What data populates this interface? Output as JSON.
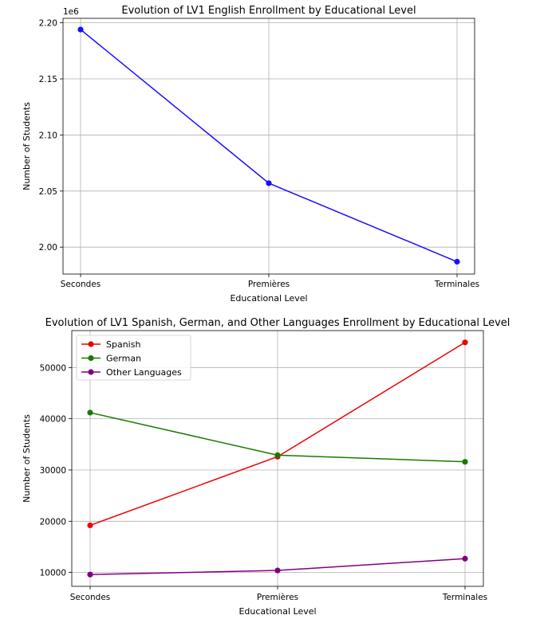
{
  "chart_data": [
    {
      "type": "line",
      "title": "Evolution of LV1 English Enrollment by Educational Level",
      "xlabel": "Educational Level",
      "ylabel": "Number of Students",
      "offset_label": "1e6",
      "categories": [
        "Secondes",
        "Premières",
        "Terminales"
      ],
      "series": [
        {
          "values": [
            2194000,
            2057000,
            1987000
          ],
          "color": "#1a0dff"
        }
      ],
      "yticks": [
        2000000,
        2050000,
        2100000,
        2150000,
        2200000
      ],
      "ytick_labels": [
        "2.00",
        "2.05",
        "2.10",
        "2.15",
        "2.20"
      ],
      "ylim": [
        1976000,
        2204000
      ],
      "grid": true,
      "legend": false
    },
    {
      "type": "line",
      "title": "Evolution of LV1 Spanish, German, and Other Languages Enrollment by Educational Level",
      "xlabel": "Educational Level",
      "ylabel": "Number of Students",
      "categories": [
        "Secondes",
        "Premières",
        "Terminales"
      ],
      "series": [
        {
          "name": "Spanish",
          "values": [
            19200,
            32600,
            54900
          ],
          "color": "#ee0000"
        },
        {
          "name": "German",
          "values": [
            41200,
            32900,
            31600
          ],
          "color": "#1a7a00"
        },
        {
          "name": "Other Languages",
          "values": [
            9600,
            10400,
            12700
          ],
          "color": "#800080"
        }
      ],
      "yticks": [
        10000,
        20000,
        30000,
        40000,
        50000
      ],
      "ytick_labels": [
        "10000",
        "20000",
        "30000",
        "40000",
        "50000"
      ],
      "ylim": [
        7300,
        57200
      ],
      "grid": true,
      "legend": "top-left"
    }
  ]
}
